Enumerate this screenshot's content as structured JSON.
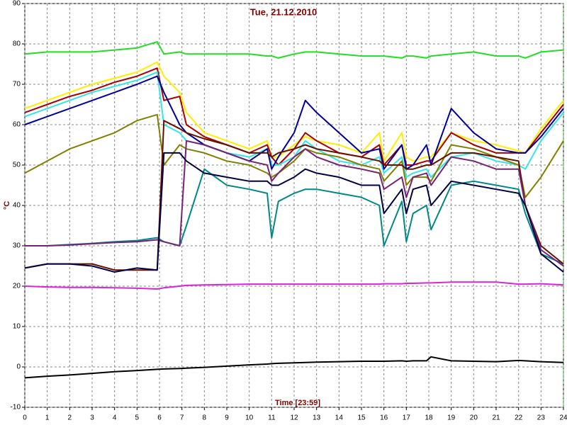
{
  "chart_data": {
    "type": "line",
    "title": "Tue, 21.12.2010",
    "x_label": "Time [23:59]",
    "y_label": "°C",
    "x": [
      0,
      1,
      2,
      3,
      4,
      5,
      5.9,
      6.2,
      6.9,
      7.2,
      8,
      9,
      10,
      10.8,
      11,
      11.3,
      12,
      12.5,
      13,
      14,
      15,
      15.8,
      16,
      16.8,
      17,
      17.3,
      17.9,
      18.1,
      19,
      20,
      21,
      22,
      22.3,
      23,
      24
    ],
    "xlim": [
      0,
      24
    ],
    "xticks": [
      0,
      1,
      2,
      3,
      4,
      5,
      6,
      7,
      8,
      9,
      10,
      11,
      12,
      13,
      14,
      15,
      16,
      17,
      18,
      19,
      20,
      21,
      22,
      23,
      24
    ],
    "ylim": [
      -10,
      90
    ],
    "yticks": [
      -10,
      0,
      10,
      20,
      30,
      40,
      50,
      60,
      70,
      80,
      90
    ],
    "grid": true,
    "series": [
      {
        "color": "#22dd22",
        "values": [
          77.5,
          78,
          78,
          78,
          78.5,
          79,
          80.5,
          77.5,
          78,
          77.5,
          77.5,
          77.5,
          77.5,
          77,
          77,
          76.5,
          77.5,
          78,
          78,
          77.5,
          77,
          77,
          77,
          76.5,
          77,
          77,
          76.5,
          77,
          77.5,
          78,
          77,
          77,
          76.5,
          78,
          78.5
        ]
      },
      {
        "color": "#dd22dd",
        "values": [
          20,
          19.8,
          19.7,
          19.7,
          19.6,
          19.5,
          19.3,
          19.6,
          20,
          20.2,
          20.3,
          20.4,
          20.5,
          20.5,
          20.5,
          20.5,
          20.5,
          20.5,
          20.5,
          20.5,
          20.5,
          20.5,
          20.6,
          20.6,
          20.7,
          20.7,
          20.8,
          20.8,
          21,
          21,
          21,
          20.5,
          20.5,
          20.6,
          20.3
        ]
      },
      {
        "color": "#000000",
        "values": [
          -2.7,
          -2.3,
          -2,
          -1.6,
          -1.2,
          -0.9,
          -0.6,
          -0.5,
          -0.4,
          -0.3,
          -0.1,
          0.2,
          0.5,
          0.7,
          0.8,
          0.9,
          1,
          1.1,
          1.2,
          1.3,
          1.4,
          1.4,
          1.4,
          1.5,
          1.4,
          1.5,
          1.5,
          2.5,
          1.5,
          1.4,
          1.3,
          1.6,
          1.5,
          1.3,
          1.1
        ]
      },
      {
        "color": "#ffee00",
        "values": [
          64,
          66,
          68,
          70,
          71.5,
          73,
          75.5,
          72,
          68,
          63,
          58,
          56,
          54,
          56,
          52,
          52,
          55,
          57,
          56,
          55,
          53,
          58,
          51,
          58,
          52,
          51,
          52,
          52,
          58,
          56,
          55,
          53.5,
          53,
          59,
          66
        ]
      },
      {
        "color": "#aa0000",
        "values": [
          63,
          65,
          67,
          68.5,
          70.5,
          72,
          74,
          66,
          67,
          60,
          57,
          55,
          53,
          55,
          52,
          50,
          54,
          58,
          56,
          53,
          52,
          55,
          50,
          55,
          50,
          50,
          51,
          51,
          58,
          55,
          53,
          53,
          53,
          58,
          65
        ]
      },
      {
        "color": "#33e5e5",
        "values": [
          62,
          64,
          66,
          68,
          69.5,
          71,
          73,
          60,
          58,
          56,
          55,
          53,
          52,
          54,
          50,
          50,
          52,
          56,
          54,
          51,
          50,
          52,
          48,
          52,
          47,
          48,
          49,
          47,
          52,
          53,
          51,
          50,
          49,
          56,
          63
        ]
      },
      {
        "color": "#000099",
        "values": [
          60,
          62,
          64,
          66,
          68,
          70,
          72,
          68,
          60,
          58,
          55,
          53,
          51,
          54,
          49,
          52,
          58,
          66,
          63,
          58,
          53,
          54,
          49,
          55,
          49,
          50,
          55,
          50,
          64,
          58,
          54,
          53,
          53,
          57,
          64
        ]
      },
      {
        "color": "#808000",
        "values": [
          48,
          51,
          54,
          56,
          58,
          61,
          62.5,
          50,
          55,
          54,
          53,
          51,
          50,
          48,
          47,
          48,
          51,
          54,
          53,
          52,
          50,
          49,
          46,
          51,
          45,
          47,
          47,
          46,
          55,
          54,
          52,
          50,
          42,
          47,
          56
        ]
      },
      {
        "color": "#008888",
        "values": [
          30,
          30,
          30.3,
          30.6,
          31,
          31.3,
          32,
          31,
          30,
          35,
          49,
          45,
          44,
          43,
          32,
          41,
          43,
          44,
          44,
          43,
          42,
          40,
          30,
          41,
          31,
          38,
          40,
          34,
          45,
          46,
          45,
          44,
          38,
          28,
          25.5
        ]
      },
      {
        "color": "#661100",
        "values": [
          24.5,
          25.5,
          25.5,
          25.5,
          24,
          24,
          24,
          61,
          59,
          58,
          56.5,
          55,
          53,
          53,
          52,
          53,
          54,
          55,
          54,
          53,
          52,
          51,
          50,
          50,
          49,
          49,
          50,
          50,
          53,
          53,
          52,
          51,
          40,
          30,
          25.5
        ]
      },
      {
        "color": "#772277",
        "values": [
          30,
          30,
          30.2,
          30.5,
          30.8,
          31,
          31.5,
          31,
          30,
          56,
          55,
          53,
          51,
          50,
          46,
          48,
          52,
          54,
          52,
          50,
          49,
          48,
          44,
          47,
          42,
          47,
          48,
          45,
          52,
          51,
          49,
          49,
          40,
          29,
          25
        ]
      },
      {
        "color": "#000044",
        "values": [
          24.5,
          25.5,
          25.5,
          25,
          23.5,
          24.5,
          24,
          53,
          53,
          51,
          48,
          47,
          46,
          46,
          45,
          45,
          47,
          49,
          48,
          47,
          45,
          45,
          38,
          44,
          38,
          44,
          45,
          40,
          46,
          45,
          44,
          43,
          40,
          28,
          23.5
        ]
      }
    ]
  }
}
